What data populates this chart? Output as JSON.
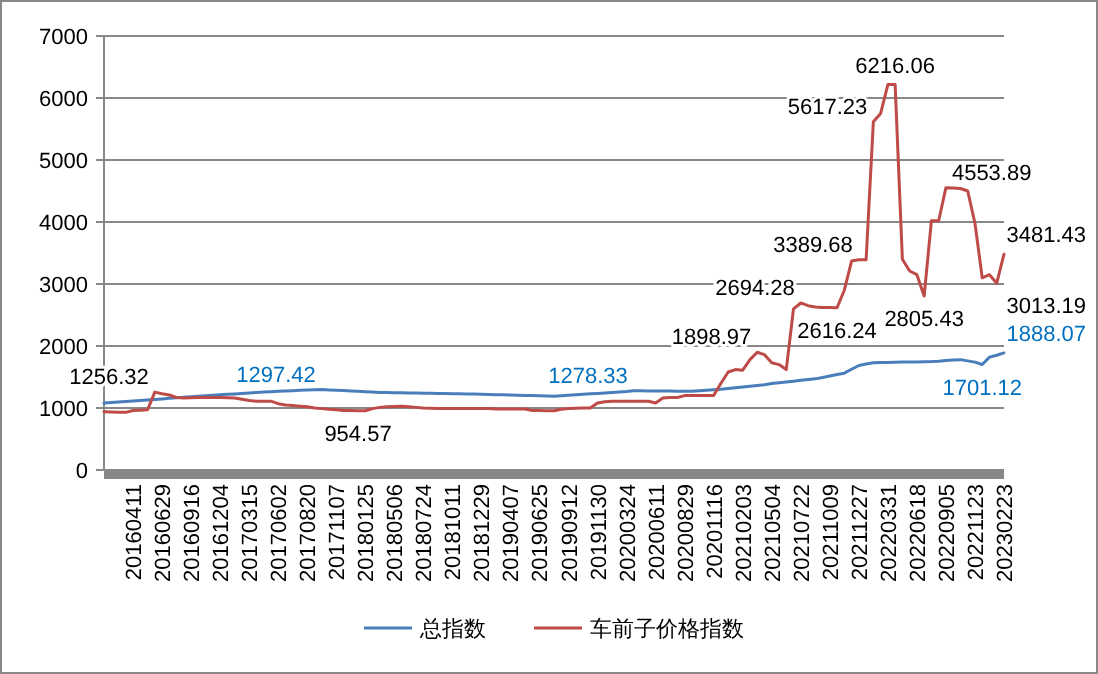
{
  "chart_data": {
    "type": "line",
    "categories": [
      null,
      null,
      null,
      null,
      "20160411",
      null,
      null,
      null,
      "20160629",
      null,
      null,
      null,
      "20160916",
      null,
      null,
      null,
      "20161204",
      null,
      null,
      null,
      "20170315",
      null,
      null,
      null,
      "20170602",
      null,
      null,
      null,
      "20170820",
      null,
      null,
      null,
      "20171107",
      null,
      null,
      null,
      "20180125",
      null,
      null,
      null,
      "20180506",
      null,
      null,
      null,
      "20180724",
      null,
      null,
      null,
      "20181011",
      null,
      null,
      null,
      "20181229",
      null,
      null,
      null,
      "20190407",
      null,
      null,
      null,
      "20190625",
      null,
      null,
      null,
      "20190912",
      null,
      null,
      null,
      "20191130",
      null,
      null,
      null,
      "20200324",
      null,
      null,
      null,
      "20200611",
      null,
      null,
      null,
      "20200829",
      null,
      null,
      null,
      "20201116",
      null,
      null,
      null,
      "20210203",
      null,
      null,
      null,
      "20210504",
      null,
      null,
      null,
      "20210722",
      null,
      null,
      null,
      "20211009",
      null,
      null,
      null,
      "20211227",
      null,
      null,
      null,
      "20220331",
      null,
      null,
      null,
      "20220618",
      null,
      null,
      null,
      "20220905",
      null,
      null,
      null,
      "20221123",
      null,
      null,
      null,
      "20230223"
    ],
    "series": [
      {
        "name": "总指数",
        "color": "#4a7ebb",
        "values": [
          1080,
          1088,
          1097,
          1105,
          1114,
          1122,
          1130,
          1139,
          1147,
          1156,
          1164,
          1172,
          1181,
          1189,
          1198,
          1205,
          1212,
          1220,
          1227,
          1234,
          1242,
          1249,
          1256,
          1264,
          1271,
          1276,
          1280,
          1285,
          1290,
          1294,
          1297.42,
          1292,
          1287,
          1281,
          1276,
          1270,
          1264,
          1258,
          1252,
          1249,
          1247,
          1245,
          1243,
          1241,
          1239,
          1237,
          1234,
          1232,
          1230,
          1228,
          1226,
          1224,
          1221,
          1218,
          1215,
          1212,
          1209,
          1206,
          1203,
          1200,
          1197,
          1193,
          1191,
          1198,
          1206,
          1213,
          1220,
          1228,
          1235,
          1243,
          1250,
          1257,
          1265,
          1278.33,
          1277,
          1276,
          1275,
          1274,
          1273,
          1272,
          1271,
          1270,
          1278,
          1285,
          1293,
          1302,
          1314,
          1327,
          1339,
          1352,
          1364,
          1376,
          1395,
          1408,
          1420,
          1433,
          1446,
          1458,
          1470,
          1492,
          1515,
          1539,
          1562,
          1625,
          1685,
          1711,
          1730,
          1733,
          1735,
          1737,
          1740,
          1742,
          1744,
          1747,
          1749,
          1755,
          1765,
          1773,
          1780,
          1760,
          1740,
          1701.12,
          1820,
          1850,
          1888.07
        ],
        "value_labels": [
          null,
          null,
          null,
          null,
          null,
          null,
          null,
          null,
          null,
          null,
          null,
          null,
          null,
          null,
          null,
          null,
          null,
          null,
          null,
          null,
          null,
          null,
          null,
          null,
          null,
          null,
          null,
          null,
          null,
          null,
          "1297.42",
          null,
          null,
          null,
          null,
          null,
          null,
          null,
          null,
          null,
          null,
          null,
          null,
          null,
          null,
          null,
          null,
          null,
          null,
          null,
          null,
          null,
          null,
          null,
          null,
          null,
          null,
          null,
          null,
          null,
          null,
          null,
          null,
          null,
          null,
          null,
          null,
          null,
          null,
          null,
          null,
          null,
          null,
          "1278.33",
          null,
          null,
          null,
          null,
          null,
          null,
          null,
          null,
          null,
          null,
          null,
          null,
          null,
          null,
          null,
          null,
          null,
          null,
          null,
          null,
          null,
          null,
          null,
          null,
          null,
          null,
          null,
          null,
          null,
          null,
          null,
          null,
          null,
          null,
          null,
          null,
          null,
          null,
          null,
          null,
          null,
          null,
          null,
          null,
          null,
          null,
          null,
          "1701.12",
          null,
          null,
          "1888.07"
        ]
      },
      {
        "name": "车前子价格指数",
        "color": "#be4b48",
        "values": [
          940,
          935,
          930,
          930,
          960,
          965,
          970,
          1256.32,
          1230,
          1210,
          1170,
          1160,
          1165,
          1170,
          1170,
          1170,
          1170,
          1165,
          1160,
          1140,
          1120,
          1110,
          1110,
          1110,
          1070,
          1050,
          1040,
          1030,
          1020,
          1000,
          990,
          980,
          970,
          960,
          960,
          954.57,
          955,
          990,
          1010,
          1020,
          1025,
          1030,
          1020,
          1010,
          1000,
          995,
          990,
          990,
          990,
          990,
          990,
          990,
          990,
          990,
          985,
          985,
          985,
          985,
          985,
          960,
          960,
          955,
          955,
          980,
          990,
          995,
          1000,
          1000,
          1080,
          1100,
          1110,
          1110,
          1110,
          1110,
          1110,
          1110,
          1080,
          1160,
          1170,
          1170,
          1200,
          1200,
          1200,
          1200,
          1200,
          1400,
          1580,
          1620,
          1610,
          1780,
          1898.97,
          1860,
          1730,
          1700,
          1620,
          2600,
          2694.28,
          2650,
          2630,
          2620,
          2620,
          2616.24,
          2900,
          3370,
          3389.68,
          3390,
          5617.23,
          5750,
          6216.06,
          6216.06,
          3400,
          3210,
          3150,
          2805.43,
          4020,
          4020,
          4553.89,
          4550,
          4540,
          4500,
          3980,
          3100,
          3150,
          3013.19,
          3481.43
        ],
        "value_labels": [
          null,
          null,
          null,
          null,
          null,
          null,
          null,
          "1256.32",
          null,
          null,
          null,
          null,
          null,
          null,
          null,
          null,
          null,
          null,
          null,
          null,
          null,
          null,
          null,
          null,
          null,
          null,
          null,
          null,
          null,
          null,
          null,
          null,
          null,
          null,
          null,
          "954.57",
          null,
          null,
          null,
          null,
          null,
          null,
          null,
          null,
          null,
          null,
          null,
          null,
          null,
          null,
          null,
          null,
          null,
          null,
          null,
          null,
          null,
          null,
          null,
          null,
          null,
          null,
          null,
          null,
          null,
          null,
          null,
          null,
          null,
          null,
          null,
          null,
          null,
          null,
          null,
          null,
          null,
          null,
          null,
          null,
          null,
          null,
          null,
          null,
          null,
          null,
          null,
          null,
          null,
          null,
          "1898.97",
          null,
          null,
          null,
          null,
          null,
          "2694.28",
          null,
          null,
          null,
          null,
          "2616.24",
          null,
          null,
          "3389.68",
          null,
          "5617.23",
          null,
          null,
          "6216.06",
          null,
          null,
          null,
          "2805.43",
          null,
          null,
          "4553.89",
          null,
          null,
          null,
          null,
          null,
          null,
          "3013.19",
          "3481.43"
        ]
      }
    ],
    "ylim": [
      0,
      7000
    ],
    "yticks": [
      0,
      1000,
      2000,
      3000,
      4000,
      5000,
      6000,
      7000
    ],
    "grid": "y",
    "legend": "bottom"
  }
}
